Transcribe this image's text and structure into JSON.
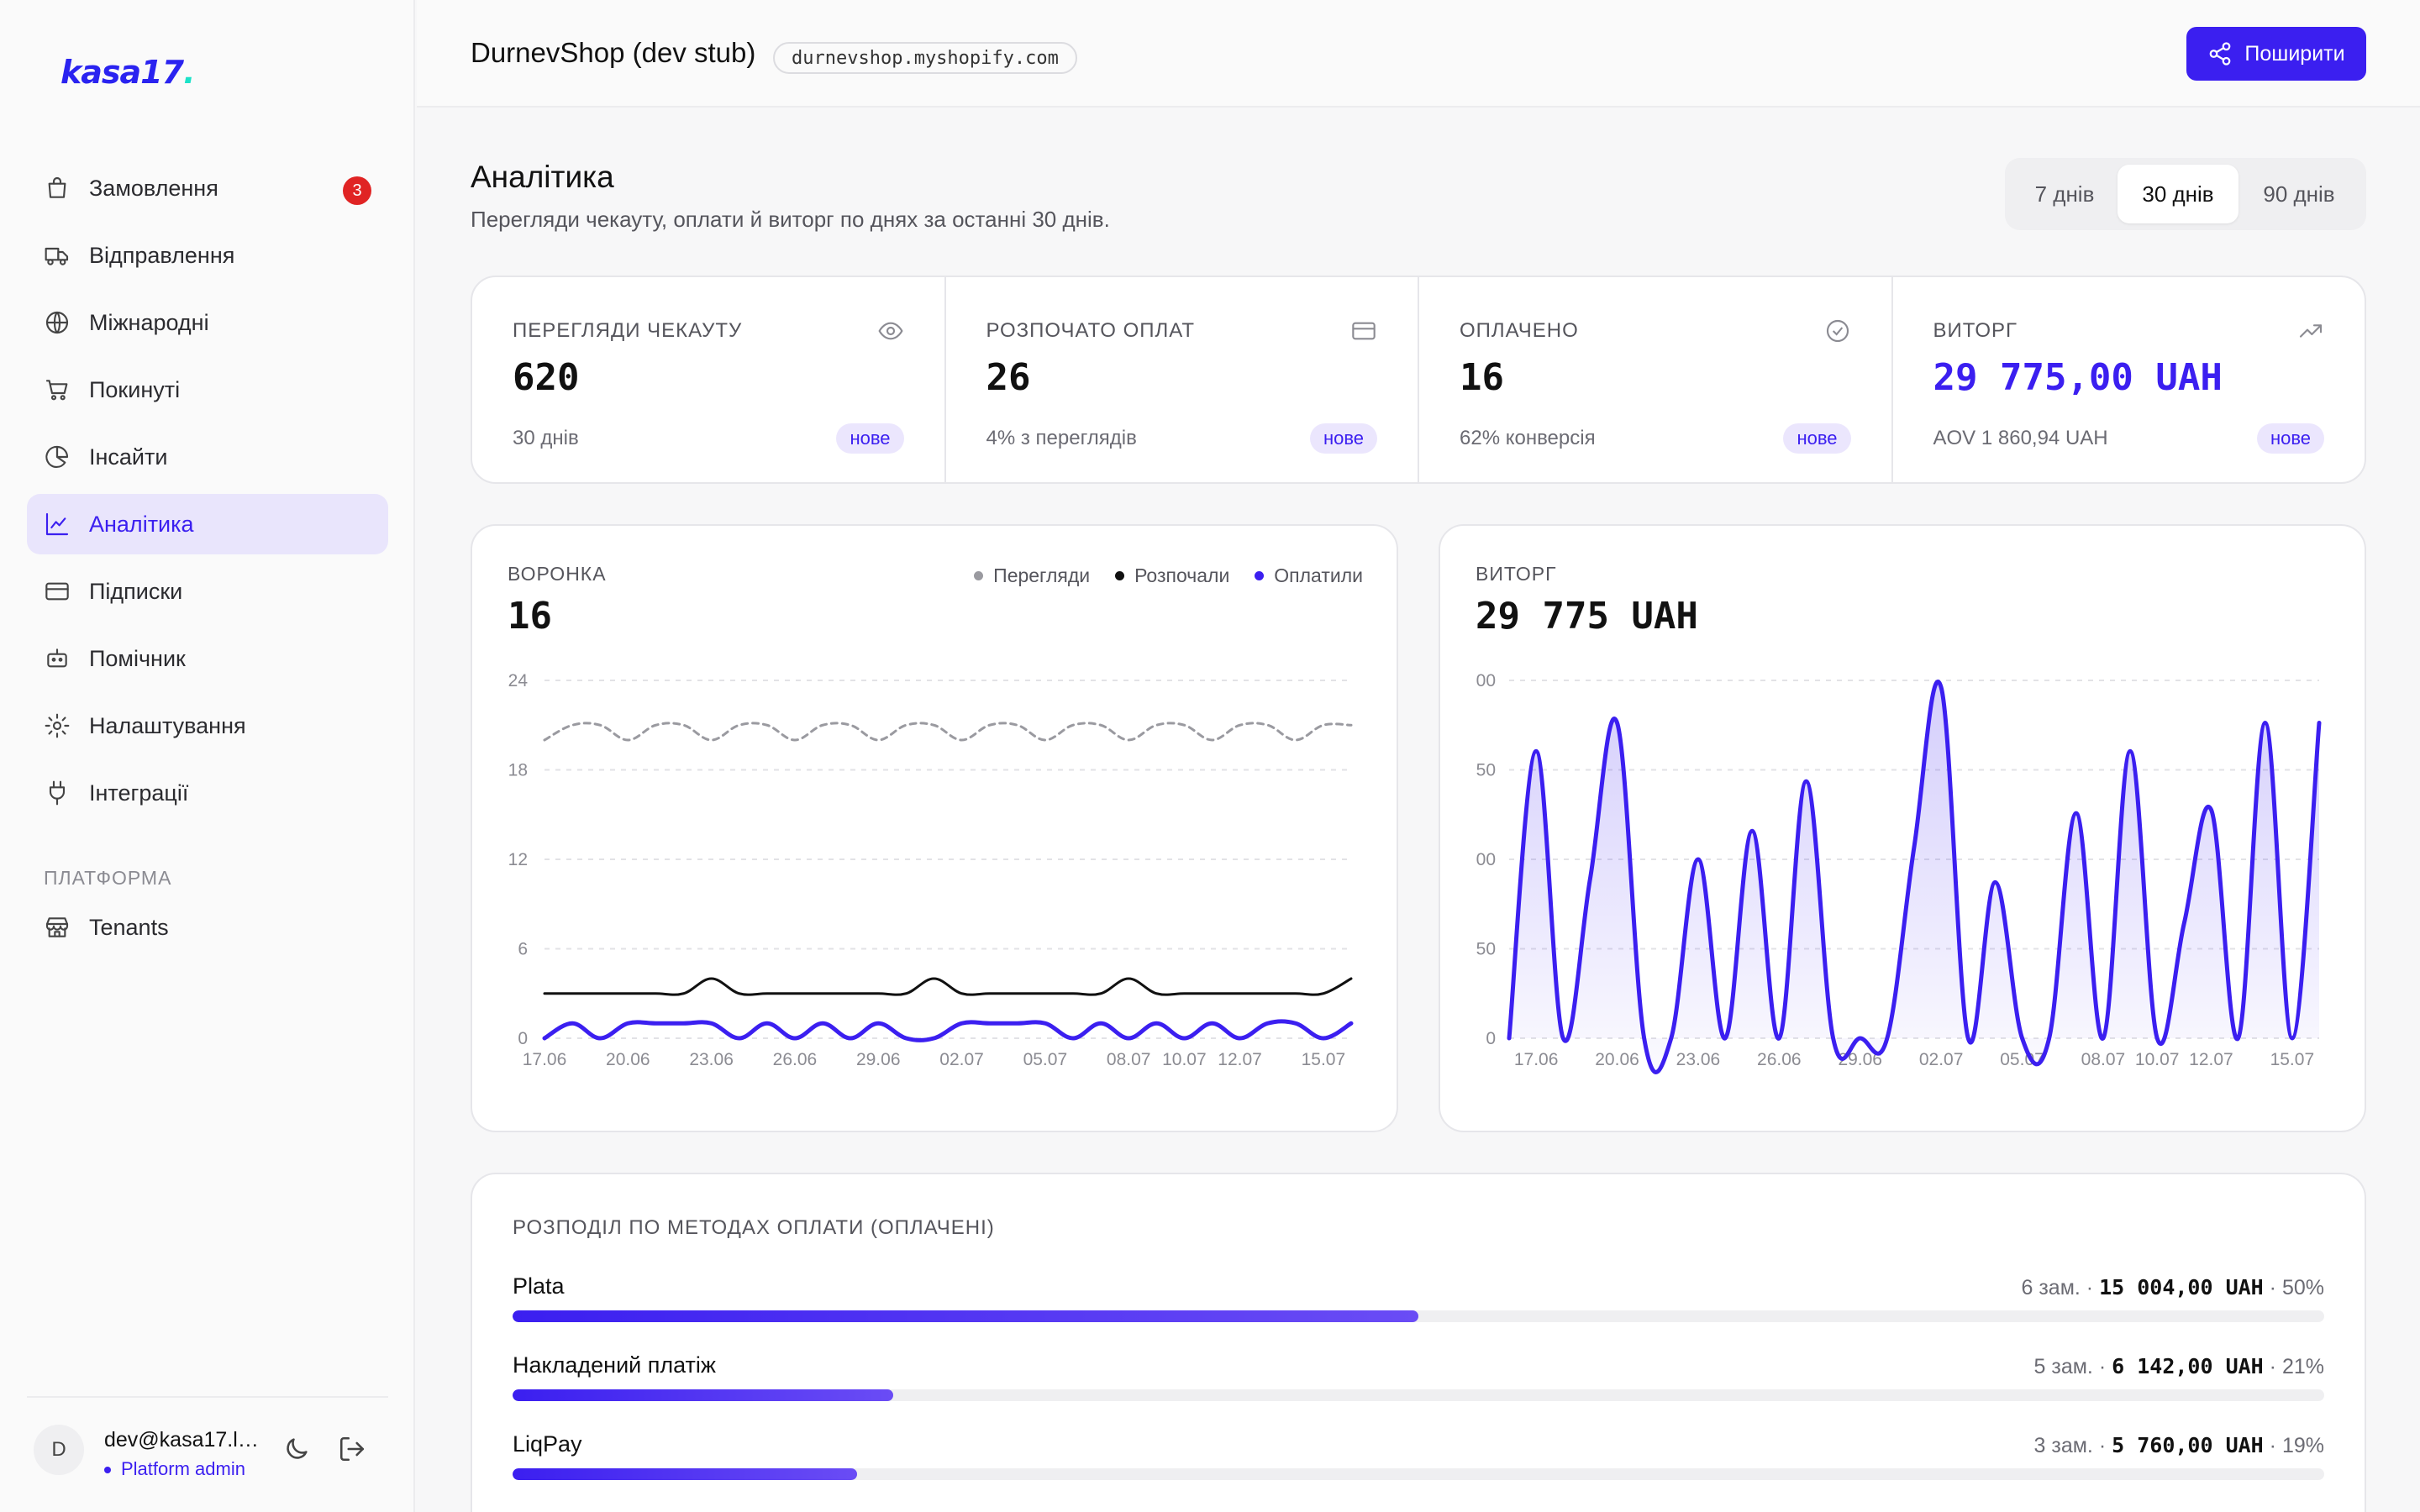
{
  "brand": {
    "logo_text": "kasa17",
    "logo_dot": "."
  },
  "sidebar": {
    "items": [
      {
        "label": "Замовлення",
        "icon": "bag-icon",
        "badge": "3"
      },
      {
        "label": "Відправлення",
        "icon": "truck-icon"
      },
      {
        "label": "Міжнародні",
        "icon": "globe-icon"
      },
      {
        "label": "Покинуті",
        "icon": "cart-icon"
      },
      {
        "label": "Інсайти",
        "icon": "pie-icon"
      },
      {
        "label": "Аналітика",
        "icon": "line-chart-icon",
        "active": true
      },
      {
        "label": "Підписки",
        "icon": "card-icon"
      },
      {
        "label": "Помічник",
        "icon": "bot-icon"
      },
      {
        "label": "Налаштування",
        "icon": "gear-icon"
      },
      {
        "label": "Інтеграції",
        "icon": "plug-icon"
      }
    ],
    "section_label": "ПЛАТФОРМА",
    "platform_items": [
      {
        "label": "Tenants",
        "icon": "store-icon"
      }
    ],
    "user": {
      "initial": "D",
      "email": "dev@kasa17.lo...",
      "role": "Platform admin"
    }
  },
  "header": {
    "shop_name": "DurnevShop (dev stub)",
    "shop_domain": "durnevshop.myshopify.com",
    "share_label": "Поширити"
  },
  "page": {
    "title": "Аналітика",
    "subtitle": "Перегляди чекауту, оплати й виторг по днях за останні 30 днів.",
    "ranges": [
      "7 днів",
      "30 днів",
      "90 днів"
    ],
    "selected_range": "30 днів"
  },
  "kpis": [
    {
      "label": "ПЕРЕГЛЯДИ ЧЕКАУТУ",
      "value": "620",
      "sub": "30 днів",
      "badge": "нове",
      "icon": "eye-icon"
    },
    {
      "label": "РОЗПОЧАТО ОПЛАТ",
      "value": "26",
      "sub": "4% з переглядів",
      "badge": "нове",
      "icon": "card-icon"
    },
    {
      "label": "ОПЛАЧЕНО",
      "value": "16",
      "sub": "62% конверсія",
      "badge": "нове",
      "icon": "check-circle-icon"
    },
    {
      "label": "ВИТОРГ",
      "value": "29 775,00 UAH",
      "sub": "AOV 1 860,94 UAH",
      "badge": "нове",
      "icon": "trend-up-icon",
      "accent": true
    }
  ],
  "colors": {
    "accent": "#3b1ff0",
    "views": "#9a9aa0",
    "started": "#111111",
    "paid": "#3b1ff0"
  },
  "funnel": {
    "title": "ВОРОНКА",
    "value": "16",
    "legend": [
      "Перегляди",
      "Розпочали",
      "Оплатили"
    ]
  },
  "revenue": {
    "title": "ВИТОРГ",
    "value": "29 775 UAH"
  },
  "chart_data": [
    {
      "type": "line",
      "title": "ВОРОНКА",
      "x": [
        "17.06",
        "18.06",
        "19.06",
        "20.06",
        "21.06",
        "22.06",
        "23.06",
        "24.06",
        "25.06",
        "26.06",
        "27.06",
        "28.06",
        "29.06",
        "30.06",
        "01.07",
        "02.07",
        "03.07",
        "04.07",
        "05.07",
        "06.07",
        "07.07",
        "08.07",
        "09.07",
        "10.07",
        "11.07",
        "12.07",
        "13.07",
        "14.07",
        "15.07",
        "16.07"
      ],
      "x_tick_labels": [
        "17.06",
        "20.06",
        "23.06",
        "26.06",
        "29.06",
        "02.07",
        "05.07",
        "08.07",
        "10.07",
        "12.07",
        "15.07"
      ],
      "y_ticks": [
        0,
        6,
        12,
        18,
        24
      ],
      "ylim": [
        0,
        24
      ],
      "grid": true,
      "legend_position": "top-right",
      "series": [
        {
          "name": "Перегляди",
          "style": "dashed",
          "values": [
            20,
            21,
            21,
            20,
            21,
            21,
            20,
            21,
            21,
            20,
            21,
            21,
            20,
            21,
            21,
            20,
            21,
            21,
            20,
            21,
            21,
            20,
            21,
            21,
            20,
            21,
            21,
            20,
            21,
            21
          ]
        },
        {
          "name": "Розпочали",
          "values": [
            3,
            3,
            3,
            3,
            3,
            3,
            4,
            3,
            3,
            3,
            3,
            3,
            3,
            3,
            4,
            3,
            3,
            3,
            3,
            3,
            3,
            4,
            3,
            3,
            3,
            3,
            3,
            3,
            3,
            4
          ]
        },
        {
          "name": "Оплатили",
          "values": [
            0,
            1,
            0,
            1,
            1,
            1,
            1,
            0,
            1,
            0,
            1,
            0,
            1,
            0,
            0,
            1,
            1,
            1,
            1,
            0,
            1,
            0,
            1,
            0,
            1,
            0,
            1,
            1,
            0,
            1
          ]
        }
      ]
    },
    {
      "type": "area",
      "title": "ВИТОРГ",
      "x": [
        "16.06",
        "17.06",
        "18.06",
        "19.06",
        "20.06",
        "21.06",
        "22.06",
        "23.06",
        "24.06",
        "25.06",
        "26.06",
        "27.06",
        "28.06",
        "29.06",
        "30.06",
        "01.07",
        "02.07",
        "03.07",
        "04.07",
        "05.07",
        "06.07",
        "07.07",
        "08.07",
        "09.07",
        "10.07",
        "11.07",
        "12.07",
        "13.07",
        "14.07",
        "15.07",
        "16.07"
      ],
      "x_tick_labels": [
        "17.06",
        "20.06",
        "23.06",
        "26.06",
        "29.06",
        "02.07",
        "05.07",
        "08.07",
        "10.07",
        "12.07",
        "15.07"
      ],
      "y_tick_labels": [
        "0",
        "50",
        "00",
        "50",
        "00"
      ],
      "grid": true,
      "series": [
        {
          "name": "",
          "values": [
            0,
            1620,
            0,
            900,
            1780,
            0,
            0,
            1010,
            0,
            1170,
            0,
            1450,
            0,
            0,
            0,
            1080,
            1980,
            0,
            880,
            0,
            0,
            1270,
            0,
            1620,
            0,
            650,
            1290,
            0,
            1780,
            0,
            1780
          ]
        }
      ]
    }
  ],
  "methods": {
    "title": "РОЗПОДІЛ ПО МЕТОДАХ ОПЛАТИ (ОПЛАЧЕНІ)",
    "rows": [
      {
        "name": "Plata",
        "orders": "6 зам. · ",
        "amount": "15 004,00 UAH",
        "share": " · 50%",
        "fraction": 0.5
      },
      {
        "name": "Накладений платіж",
        "orders": "5 зам. · ",
        "amount": "6 142,00 UAH",
        "share": " · 21%",
        "fraction": 0.21
      },
      {
        "name": "LiqPay",
        "orders": "3 зам. · ",
        "amount": "5 760,00 UAH",
        "share": " · 19%",
        "fraction": 0.19
      }
    ]
  }
}
